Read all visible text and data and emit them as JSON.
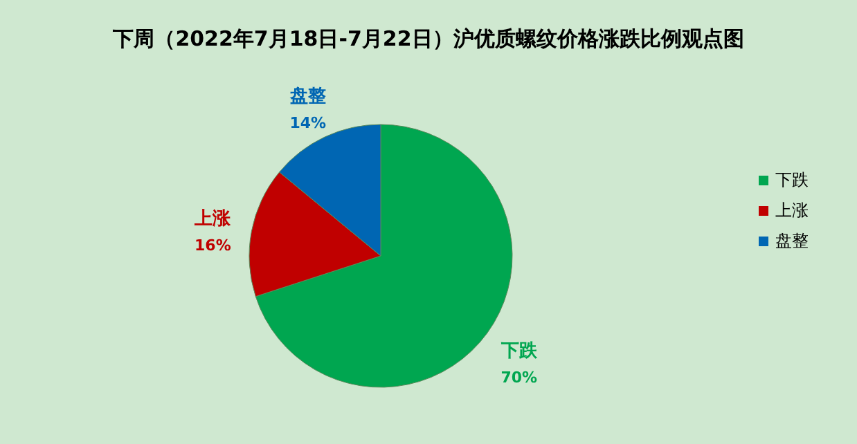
{
  "chart_data": {
    "type": "pie",
    "title": "下周（2022年7月18日-7月22日）沪优质螺纹价格涨跌比例观点图",
    "categories": [
      "下跌",
      "上涨",
      "盘整"
    ],
    "values": [
      70,
      16,
      14
    ],
    "value_labels": [
      "70%",
      "16%",
      "14%"
    ],
    "colors": [
      "#00a650",
      "#c00000",
      "#0066b3"
    ],
    "legend": "right"
  }
}
